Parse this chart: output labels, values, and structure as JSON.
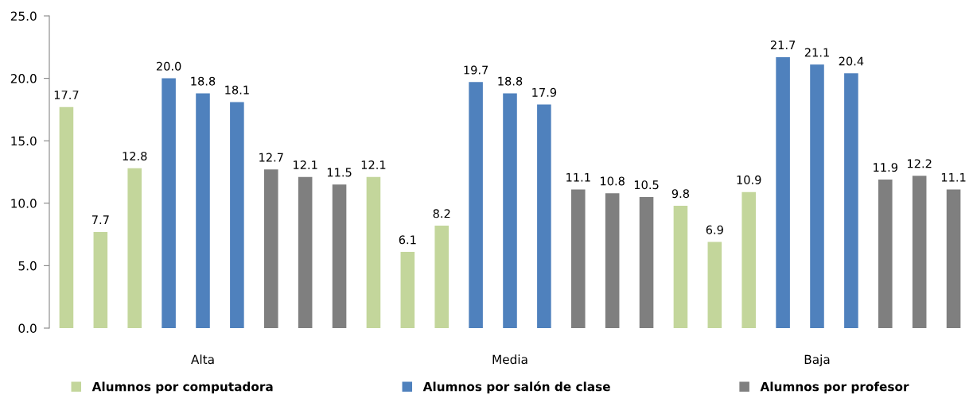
{
  "chart_data": {
    "type": "bar",
    "stacked": true,
    "legend": "bottom",
    "grid": false,
    "categories": [
      null,
      null,
      null,
      null,
      "Alta",
      null,
      null,
      null,
      null,
      null,
      null,
      null,
      null,
      "Media",
      null,
      null,
      null,
      null,
      null,
      null,
      null,
      null,
      "Baja",
      null,
      null,
      null,
      null
    ],
    "ylim": [
      0,
      25
    ],
    "yticks": [
      {
        "value": 0,
        "label": "0.0"
      },
      {
        "value": 5,
        "label": "5.0"
      },
      {
        "value": 10,
        "label": "10.0"
      },
      {
        "value": 15,
        "label": "15.0"
      },
      {
        "value": 20,
        "label": "20.0"
      },
      {
        "value": 25,
        "label": "25.0"
      }
    ],
    "series": [
      {
        "name": "Alumnos por computadora",
        "color": "#c3d69b",
        "values": [
          17.7,
          7.7,
          12.8,
          null,
          null,
          null,
          null,
          null,
          null,
          12.1,
          6.1,
          8.2,
          null,
          null,
          null,
          null,
          null,
          null,
          9.8,
          6.9,
          10.9,
          null,
          null,
          null,
          null,
          null,
          null
        ],
        "value_labels": [
          "17.7",
          "7.7",
          "12.8",
          null,
          null,
          null,
          null,
          null,
          null,
          "12.1",
          "6.1",
          "8.2",
          null,
          null,
          null,
          null,
          null,
          null,
          "9.8",
          "6.9",
          "10.9",
          null,
          null,
          null,
          null,
          null,
          null
        ]
      },
      {
        "name": "Alumnos por salón de clase",
        "color": "#4f81bd",
        "values": [
          null,
          null,
          null,
          20.0,
          18.8,
          18.1,
          null,
          null,
          null,
          null,
          null,
          null,
          19.7,
          18.8,
          17.9,
          null,
          null,
          null,
          null,
          null,
          null,
          21.7,
          21.1,
          20.4,
          null,
          null,
          null
        ],
        "value_labels": [
          null,
          null,
          null,
          "20.0",
          "18.8",
          "18.1",
          null,
          null,
          null,
          null,
          null,
          null,
          "19.7",
          "18.8",
          "17.9",
          null,
          null,
          null,
          null,
          null,
          null,
          "21.7",
          "21.1",
          "20.4",
          null,
          null,
          null
        ]
      },
      {
        "name": "Alumnos por profesor",
        "color": "#7f7f7f",
        "values": [
          null,
          null,
          null,
          null,
          null,
          null,
          12.7,
          12.1,
          11.5,
          null,
          null,
          null,
          null,
          null,
          null,
          11.1,
          10.8,
          10.5,
          null,
          null,
          null,
          null,
          null,
          null,
          11.9,
          12.2,
          11.1
        ],
        "value_labels": [
          null,
          null,
          null,
          null,
          null,
          null,
          "12.7",
          "12.1",
          "11.5",
          null,
          null,
          null,
          null,
          null,
          null,
          "11.1",
          "10.8",
          "10.5",
          null,
          null,
          null,
          null,
          null,
          null,
          "11.9",
          "12.2",
          "11.1"
        ]
      }
    ]
  }
}
